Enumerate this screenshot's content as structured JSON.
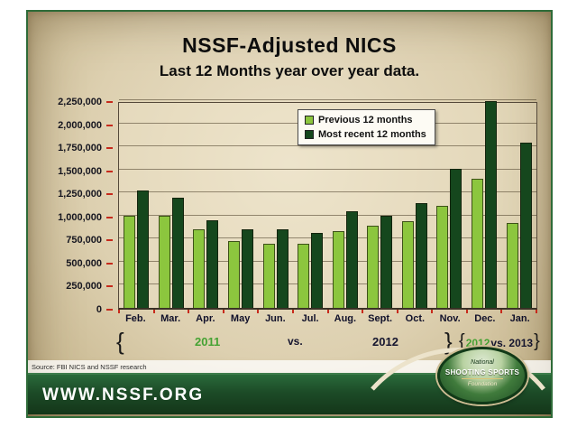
{
  "slide": {
    "title": "NSSF-Adjusted NICS",
    "subtitle": "Last 12 Months year over year data.",
    "source_note": "Source: FBI NICS and NSSF research",
    "footer_url": "WWW.NSSF.ORG",
    "logo": {
      "line1": "National",
      "line2": "SHOOTING SPORTS",
      "line3": "Foundation"
    }
  },
  "annotations": {
    "left_brace": "{",
    "label_2011": "2011",
    "vs_label": "vs.",
    "label_2012": "2012",
    "right_brace": "}",
    "right_group": {
      "open": "{",
      "year_green": "2012",
      "rest": "vs. 2013",
      "close": "}"
    }
  },
  "colors": {
    "previous_series": "#8cc63e",
    "recent_series": "#15471d",
    "accent_green_text": "#45a233",
    "banner_green": "#1c4b27",
    "tick_red": "#c62a1c",
    "parchment": "#ddd0b0"
  },
  "chart_data": {
    "type": "bar",
    "title": "NSSF-Adjusted NICS",
    "subtitle": "Last 12 Months year over year data.",
    "categories": [
      "Feb.",
      "Mar.",
      "Apr.",
      "May",
      "Jun.",
      "Jul.",
      "Aug.",
      "Sept.",
      "Oct.",
      "Nov.",
      "Dec.",
      "Jan."
    ],
    "series": [
      {
        "name": "Previous 12 months",
        "color": "#8cc63e",
        "values": [
          1000000,
          1000000,
          850000,
          720000,
          690000,
          690000,
          830000,
          890000,
          940000,
          1110000,
          1400000,
          920000
        ]
      },
      {
        "name": "Most recent 12 months",
        "color": "#15471d",
        "values": [
          1270000,
          1190000,
          950000,
          850000,
          850000,
          810000,
          1050000,
          1000000,
          1130000,
          1510000,
          2240000,
          1790000
        ]
      }
    ],
    "xlabel": "",
    "ylabel": "",
    "ylim": [
      0,
      2250000
    ],
    "ytick_step": 250000,
    "grid": true,
    "legend_position": "top-center"
  }
}
